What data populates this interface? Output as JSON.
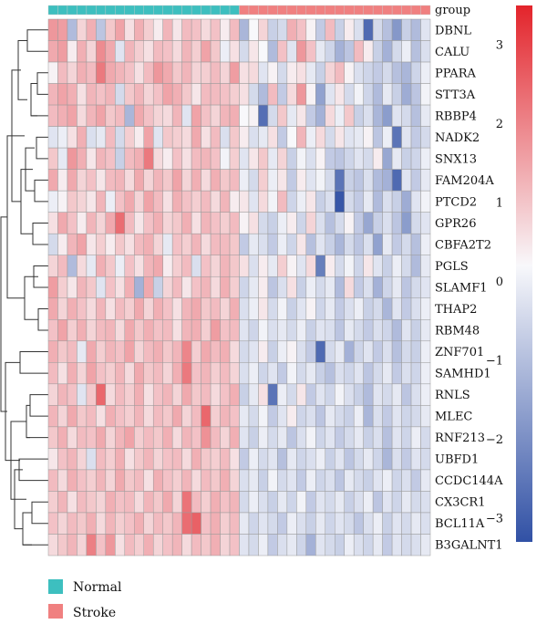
{
  "chart_data": {
    "type": "heatmap",
    "annotation_label": "group",
    "groups": [
      {
        "name": "Normal",
        "color": "#3dbfbf",
        "count": 20
      },
      {
        "name": "Stroke",
        "color": "#f08080",
        "count": 20
      }
    ],
    "rows": [
      "DBNL",
      "CALU",
      "PPARA",
      "STT3A",
      "RBBP4",
      "NADK2",
      "SNX13",
      "FAM204A",
      "PTCD2",
      "GPR26",
      "CBFA2T2",
      "PGLS",
      "SLAMF1",
      "THAP2",
      "RBM48",
      "ZNF701",
      "SAMHD1",
      "RNLS",
      "MLEC",
      "RNF213",
      "UBFD1",
      "CCDC144A",
      "CX3CR1",
      "BCL11A",
      "B3GALNT1"
    ],
    "color_scale": {
      "min": -3.3,
      "max": 3.5,
      "low_color": "#3151a5",
      "mid_color": "#f8f8fb",
      "high_color": "#e3242b",
      "ticks": [
        "3",
        "2",
        "1",
        "0",
        "−1",
        "−2",
        "−3"
      ],
      "tick_values": [
        3,
        2,
        1,
        0,
        -1,
        -2,
        -3
      ]
    },
    "values": [
      [
        1.6,
        1.5,
        -1.2,
        0.6,
        1.2,
        -1.0,
        0.8,
        1.4,
        0.4,
        1.2,
        0.7,
        0.2,
        1.1,
        0.3,
        1.0,
        0.9,
        0.5,
        0.9,
        0.2,
        1.0,
        -1.3,
        0.0,
        0.6,
        -0.8,
        -0.6,
        1.2,
        0.9,
        0.1,
        -0.9,
        1.0,
        -0.8,
        0.2,
        -0.5,
        -2.8,
        -0.6,
        -1.1,
        -1.9,
        -0.8,
        -1.2,
        -0.4
      ],
      [
        1.3,
        1.5,
        0.2,
        1.2,
        0.6,
        1.8,
        1.3,
        -0.4,
        1.1,
        0.7,
        0.4,
        1.0,
        0.9,
        0.5,
        1.1,
        0.7,
        1.4,
        0.8,
        -0.2,
        0.4,
        -0.6,
        0.3,
        0.0,
        -1.2,
        0.9,
        -0.4,
        1.6,
        0.9,
        -0.3,
        -0.7,
        -1.4,
        -1.0,
        1.0,
        0.2,
        -0.8,
        -1.4,
        -0.6,
        -0.2,
        -1.1,
        -0.5
      ],
      [
        0.1,
        1.0,
        0.6,
        1.2,
        1.0,
        2.1,
        1.3,
        1.1,
        0.9,
        0.4,
        1.0,
        1.6,
        1.3,
        0.8,
        1.1,
        0.6,
        0.7,
        1.0,
        0.6,
        1.5,
        0.4,
        0.5,
        -0.4,
        0.1,
        -0.6,
        0.2,
        0.4,
        -0.3,
        -0.8,
        0.6,
        1.0,
        0.1,
        -0.5,
        -0.7,
        -0.9,
        -0.6,
        -1.1,
        -1.3,
        -0.7,
        -0.2
      ],
      [
        1.1,
        1.4,
        1.2,
        0.4,
        1.1,
        0.9,
        1.1,
        -0.6,
        0.8,
        1.1,
        0.6,
        0.9,
        1.4,
        1.2,
        0.8,
        0.3,
        1.0,
        1.0,
        0.9,
        0.7,
        0.4,
        -0.6,
        -1.2,
        1.0,
        -0.9,
        0.5,
        1.6,
        0.1,
        -1.7,
        -0.4,
        0.3,
        -0.6,
        -0.1,
        -0.7,
        -1.2,
        -0.3,
        -0.8,
        -1.5,
        -1.0,
        -0.1
      ],
      [
        1.0,
        1.2,
        1.4,
        0.5,
        1.1,
        1.4,
        0.8,
        1.0,
        -1.3,
        1.3,
        0.9,
        0.6,
        0.5,
        1.1,
        -0.4,
        1.4,
        0.9,
        0.6,
        1.1,
        1.2,
        0.0,
        0.1,
        -2.7,
        -0.6,
        0.8,
        -0.3,
        0.3,
        -0.9,
        -1.4,
        0.5,
        -0.2,
        0.8,
        -0.8,
        -0.5,
        -1.3,
        -1.8,
        -0.4,
        -0.6,
        -1.1,
        -0.3
      ],
      [
        -0.4,
        -0.2,
        0.4,
        1.2,
        -0.5,
        -0.3,
        1.0,
        -0.6,
        0.7,
        0.2,
        1.4,
        -0.4,
        0.8,
        0.7,
        0.5,
        1.3,
        0.4,
        1.0,
        -0.5,
        0.8,
        0.2,
        -0.5,
        -0.3,
        0.4,
        -0.9,
        0.0,
        1.1,
        -0.2,
        0.5,
        -0.6,
        0.3,
        -0.4,
        -0.3,
        0.1,
        -1.0,
        -0.2,
        -2.6,
        -0.4,
        -0.9,
        -0.6
      ],
      [
        0.8,
        -0.3,
        1.6,
        1.2,
        0.3,
        1.1,
        0.9,
        -0.8,
        1.0,
        1.2,
        2.1,
        0.5,
        0.2,
        0.9,
        0.4,
        1.0,
        1.1,
        0.9,
        -0.1,
        0.7,
        -0.4,
        0.3,
        0.8,
        -0.3,
        0.6,
        -0.8,
        -0.1,
        -0.5,
        0.1,
        -0.9,
        -1.0,
        -0.7,
        -0.4,
        -0.6,
        0.2,
        -1.6,
        -0.3,
        -0.8,
        -0.7,
        -0.2
      ],
      [
        1.3,
        0.2,
        1.3,
        0.6,
        0.9,
        0.3,
        1.0,
        1.1,
        0.5,
        1.3,
        0.6,
        1.1,
        0.8,
        1.4,
        0.6,
        1.2,
        0.5,
        1.2,
        0.8,
        1.0,
        -0.2,
        -0.6,
        0.7,
        -0.2,
        0.3,
        -0.9,
        0.2,
        -0.4,
        -0.1,
        -0.6,
        -2.6,
        -0.8,
        -1.0,
        -0.5,
        -1.2,
        -1.4,
        -2.8,
        -0.4,
        -0.9,
        -0.3
      ],
      [
        -0.2,
        0.1,
        0.8,
        0.6,
        0.3,
        1.1,
        -0.2,
        0.9,
        1.3,
        0.6,
        1.4,
        1.0,
        0.4,
        1.2,
        0.9,
        0.7,
        1.0,
        0.5,
        1.1,
        0.2,
        0.3,
        -0.4,
        0.5,
        -0.1,
        1.0,
        -0.7,
        -0.2,
        0.3,
        -0.8,
        -0.5,
        -3.2,
        -0.6,
        -0.9,
        -0.3,
        -1.2,
        -0.5,
        -0.8,
        -1.5,
        -0.4,
        -0.1
      ],
      [
        0.4,
        1.3,
        0.9,
        0.2,
        1.1,
        0.6,
        1.3,
        2.3,
        1.0,
        0.3,
        0.9,
        1.2,
        0.6,
        0.8,
        1.2,
        0.4,
        1.1,
        0.9,
        0.7,
        1.0,
        0.1,
        0.4,
        -0.6,
        -0.8,
        -0.2,
        0.2,
        -0.7,
        0.6,
        -0.5,
        -1.1,
        -0.6,
        0.1,
        -0.9,
        -1.6,
        -0.8,
        -0.5,
        -1.0,
        -1.8,
        -0.6,
        -0.4
      ],
      [
        -0.6,
        0.2,
        1.1,
        1.4,
        0.3,
        0.7,
        0.2,
        0.8,
        0.4,
        1.0,
        1.2,
        0.6,
        -0.3,
        0.9,
        0.7,
        1.1,
        0.5,
        1.0,
        1.0,
        0.8,
        -0.9,
        -0.3,
        -0.5,
        -0.9,
        -0.2,
        -0.7,
        0.3,
        -1.1,
        -0.4,
        -0.8,
        -1.3,
        -0.6,
        -1.0,
        -0.5,
        -1.7,
        -0.3,
        -0.9,
        -0.6,
        -1.1,
        -0.2
      ],
      [
        0.6,
        1.0,
        -1.2,
        0.5,
        -0.3,
        1.2,
        0.8,
        -0.2,
        0.9,
        0.4,
        1.1,
        1.3,
        0.2,
        0.7,
        1.0,
        -0.5,
        0.9,
        0.6,
        1.1,
        0.8,
        0.4,
        -0.5,
        0.2,
        -0.3,
        0.7,
        0.1,
        -0.4,
        0.5,
        -2.4,
        0.2,
        -0.6,
        -0.1,
        -0.7,
        0.3,
        -0.4,
        -0.8,
        -0.2,
        -0.6,
        -1.2,
        -0.3
      ],
      [
        1.5,
        0.7,
        0.3,
        1.1,
        0.8,
        -0.4,
        0.9,
        0.4,
        1.2,
        -1.4,
        1.3,
        -0.8,
        0.6,
        1.0,
        0.3,
        0.9,
        1.1,
        0.5,
        1.2,
        0.7,
        -0.7,
        -0.3,
        0.2,
        -1.0,
        -0.5,
        0.4,
        -0.8,
        -0.2,
        -0.6,
        -0.3,
        -1.2,
        0.5,
        -0.9,
        -0.5,
        -1.4,
        -0.7,
        -0.3,
        -1.0,
        -0.6,
        -0.4
      ],
      [
        1.3,
        0.6,
        1.2,
        0.9,
        0.5,
        1.1,
        0.4,
        1.0,
        0.7,
        1.3,
        0.6,
        1.2,
        0.9,
        0.4,
        1.1,
        1.3,
        0.8,
        1.0,
        0.6,
        1.2,
        -0.5,
        -0.2,
        0.3,
        -0.6,
        -0.1,
        -0.8,
        -0.4,
        0.1,
        -0.7,
        -0.3,
        -0.9,
        -0.5,
        -0.2,
        -0.8,
        -0.6,
        -1.3,
        -0.4,
        -0.9,
        -0.5,
        -0.2
      ],
      [
        0.9,
        1.4,
        0.7,
        1.2,
        0.6,
        1.0,
        1.1,
        0.5,
        1.3,
        0.8,
        1.2,
        0.9,
        1.0,
        0.4,
        1.1,
        1.2,
        0.7,
        1.5,
        0.9,
        1.0,
        -0.4,
        -0.7,
        -0.1,
        -0.5,
        -0.3,
        -0.6,
        -0.2,
        -0.8,
        -0.4,
        -0.5,
        -1.0,
        -0.3,
        -0.6,
        -0.9,
        -0.5,
        -0.7,
        -1.2,
        -0.4,
        -0.8,
        -0.3
      ],
      [
        1.2,
        0.8,
        1.0,
        -0.3,
        1.3,
        0.7,
        1.1,
        0.9,
        1.4,
        0.6,
        1.0,
        1.2,
        0.8,
        1.1,
        1.9,
        0.7,
        1.3,
        1.0,
        1.2,
        0.5,
        -0.6,
        -0.4,
        0.2,
        -0.8,
        -0.2,
        0.1,
        -0.5,
        -0.9,
        -2.8,
        -0.6,
        -0.3,
        -1.4,
        -0.7,
        -0.4,
        -0.9,
        -0.5,
        -1.1,
        -0.6,
        -0.8,
        -0.2
      ],
      [
        1.0,
        0.4,
        1.2,
        0.6,
        1.4,
        0.9,
        0.7,
        1.1,
        0.5,
        1.3,
        0.8,
        1.0,
        0.6,
        1.2,
        2.1,
        0.9,
        1.1,
        0.7,
        1.0,
        0.6,
        -0.5,
        -0.2,
        -0.7,
        -0.4,
        -0.9,
        -0.1,
        -0.6,
        -0.3,
        -0.8,
        -1.1,
        -0.5,
        -0.7,
        -0.4,
        -1.0,
        -0.6,
        -0.3,
        -0.9,
        -0.5,
        -0.7,
        -0.2
      ],
      [
        0.6,
        1.1,
        0.9,
        -0.4,
        0.8,
        2.4,
        0.5,
        1.0,
        0.7,
        1.2,
        0.4,
        0.9,
        1.1,
        0.6,
        1.3,
        0.8,
        1.0,
        0.5,
        0.9,
        1.2,
        -0.8,
        -0.3,
        0.4,
        -2.6,
        -0.2,
        -0.6,
        0.3,
        -0.9,
        -0.4,
        -0.7,
        -0.1,
        -0.5,
        -0.8,
        -1.2,
        -0.4,
        -0.6,
        -0.3,
        -1.0,
        -0.5,
        -0.2
      ],
      [
        1.1,
        0.6,
        1.3,
        0.8,
        1.0,
        0.4,
        1.2,
        0.9,
        0.7,
        1.1,
        0.5,
        1.0,
        0.8,
        1.3,
        0.6,
        1.0,
        2.4,
        0.7,
        1.1,
        0.9,
        -0.3,
        -0.6,
        -0.1,
        -0.9,
        -0.4,
        0.2,
        -0.7,
        -0.5,
        -1.0,
        -0.3,
        -0.6,
        -0.8,
        -0.2,
        -1.3,
        -0.5,
        -0.9,
        -0.4,
        -0.7,
        -0.6,
        -0.3
      ],
      [
        0.8,
        1.2,
        0.5,
        1.0,
        0.9,
        1.3,
        0.6,
        1.1,
        1.4,
        0.7,
        1.0,
        0.8,
        1.2,
        0.5,
        1.1,
        0.9,
        1.7,
        1.0,
        0.6,
        1.2,
        -0.4,
        -0.8,
        -0.2,
        -0.6,
        -0.3,
        -1.0,
        -0.5,
        -0.1,
        -0.7,
        -0.4,
        -0.9,
        -0.6,
        -0.3,
        -0.8,
        -0.5,
        -1.1,
        -0.4,
        -0.7,
        -0.2,
        -0.6
      ],
      [
        0.3,
        0.9,
        1.1,
        0.6,
        -0.5,
        1.0,
        0.7,
        1.2,
        0.4,
        0.8,
        1.1,
        0.6,
        0.9,
        1.0,
        0.5,
        1.2,
        0.8,
        0.7,
        1.0,
        0.4,
        -0.9,
        -0.2,
        -0.6,
        -0.4,
        -1.1,
        -0.3,
        -0.7,
        -0.5,
        -0.2,
        -0.8,
        -0.4,
        -1.0,
        -0.6,
        -0.3,
        -0.7,
        -1.3,
        -0.5,
        -0.9,
        -0.4,
        -0.6
      ],
      [
        1.0,
        0.5,
        1.2,
        0.9,
        0.7,
        1.1,
        0.6,
        1.3,
        0.8,
        1.0,
        0.4,
        1.2,
        0.9,
        0.7,
        1.1,
        0.5,
        1.0,
        0.8,
        1.2,
        0.6,
        -0.5,
        -0.3,
        -0.8,
        -0.1,
        -0.6,
        -0.4,
        -0.9,
        -0.2,
        -0.7,
        -0.5,
        -1.0,
        -0.3,
        -0.6,
        -0.8,
        -0.4,
        -0.2,
        -0.7,
        -0.5,
        -0.9,
        -0.3
      ],
      [
        0.7,
        1.1,
        0.4,
        1.0,
        0.8,
        0.6,
        1.2,
        0.9,
        1.0,
        0.5,
        1.1,
        0.8,
        1.3,
        0.6,
        2.2,
        1.0,
        0.7,
        1.2,
        0.9,
        1.1,
        -0.6,
        -0.2,
        -0.5,
        -0.8,
        -0.3,
        -0.7,
        -0.1,
        -0.9,
        -0.4,
        -0.6,
        -0.3,
        -0.8,
        -0.5,
        -0.2,
        -1.0,
        -0.4,
        -0.7,
        -0.3,
        -0.6,
        -0.5
      ],
      [
        0.9,
        0.6,
        1.0,
        0.8,
        1.2,
        0.5,
        1.1,
        0.7,
        0.9,
        1.2,
        0.6,
        1.0,
        0.8,
        1.1,
        2.3,
        2.5,
        0.9,
        1.2,
        0.7,
        1.0,
        -0.3,
        -0.7,
        -0.4,
        -0.6,
        -0.9,
        -0.2,
        -0.5,
        -0.8,
        -0.3,
        -0.7,
        -0.4,
        -0.6,
        -1.0,
        -0.5,
        -0.2,
        -0.8,
        -0.4,
        -0.6,
        -0.3,
        -0.5
      ],
      [
        0.5,
        0.8,
        1.1,
        0.6,
        2.0,
        0.9,
        1.6,
        0.4,
        1.0,
        0.7,
        1.2,
        0.6,
        0.9,
        1.1,
        0.5,
        1.0,
        0.8,
        1.2,
        0.6,
        0.9,
        -0.4,
        -0.6,
        -0.2,
        -0.9,
        -0.5,
        -0.3,
        -0.7,
        -1.4,
        -0.4,
        -0.6,
        -0.8,
        -0.2,
        -0.5,
        -0.7,
        -0.3,
        -0.9,
        -0.4,
        -0.6,
        -0.5,
        -0.3
      ]
    ]
  },
  "legend": {
    "items": [
      {
        "label": "Normal",
        "color": "#3dbfbf"
      },
      {
        "label": "Stroke",
        "color": "#f08080"
      }
    ]
  }
}
